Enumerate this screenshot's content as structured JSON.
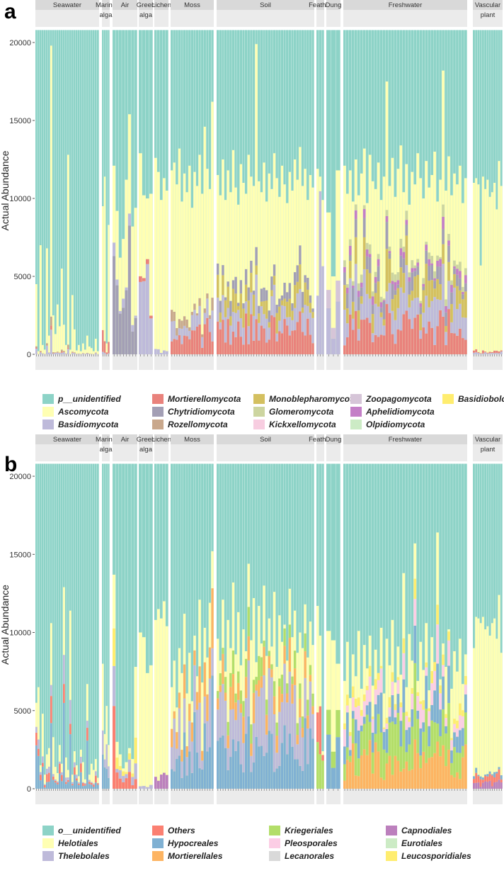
{
  "chart_data": [
    {
      "panel": "a",
      "type": "bar",
      "stacked": true,
      "ylabel": "Actual Abundance",
      "ylim": [
        0,
        21000
      ],
      "yticks": [
        0,
        5000,
        10000,
        15000,
        20000
      ],
      "background_fill": "p__unidentified",
      "background_total": 20800,
      "facets": [
        {
          "label": [
            "Seawater"
          ],
          "n": 30,
          "seed": 11,
          "main": [
            4500,
            200,
            7000,
            600,
            300,
            6800,
            1200,
            19800,
            2500,
            1300,
            3200,
            1800,
            5500,
            1900,
            600,
            12800,
            300,
            3800,
            1600,
            250,
            600,
            200,
            700,
            300,
            1200,
            500,
            400,
            200,
            1000,
            200
          ],
          "mix": [
            [
              0.05,
              "Basidiomycota"
            ],
            [
              0.01,
              "Mortierellomycota"
            ],
            [
              0.02,
              "Rozellomycota"
            ]
          ]
        },
        {
          "label": [
            "Marine",
            "alga"
          ],
          "n": 4,
          "seed": 12,
          "main": [
            9500,
            11400,
            700,
            8300
          ],
          "mix": [
            [
              0.02,
              "Basidiomycota"
            ],
            [
              0.1,
              "Mortierellomycota"
            ]
          ]
        },
        {
          "label": [
            "Air"
          ],
          "n": 8,
          "seed": 13,
          "main": [
            12100,
            9200,
            6200,
            7400,
            11200,
            15400,
            8200,
            9400
          ],
          "mix": [
            [
              0.35,
              "Chytridiomycota"
            ],
            [
              0.05,
              "Basidiomycota"
            ]
          ]
        },
        {
          "label": [
            "Green",
            "alga"
          ],
          "n": 4,
          "seed": 14,
          "main": [
            12900,
            10200,
            10000,
            10300
          ],
          "mix": [
            [
              0.5,
              "Basidiomycota"
            ],
            [
              0.02,
              "Mortierellomycota"
            ]
          ]
        },
        {
          "label": [
            "Lichen"
          ],
          "n": 5,
          "seed": 15,
          "main": [
            12600,
            11700,
            9900,
            11300,
            10500
          ],
          "mix": [
            [
              0.02,
              "Basidiomycota"
            ]
          ]
        },
        {
          "label": [
            "Moss"
          ],
          "n": 17,
          "seed": 16,
          "main": [
            11800,
            12300,
            10900,
            13200,
            9800,
            11600,
            10400,
            12100,
            9400,
            11700,
            10800,
            12800,
            10300,
            14600,
            11900,
            10600,
            16200
          ],
          "mix": [
            [
              0.12,
              "Mortierellomycota"
            ],
            [
              0.08,
              "Basidiomycota"
            ],
            [
              0.04,
              "Rozellomycota"
            ]
          ]
        },
        {
          "label": [
            "Soil"
          ],
          "n": 38,
          "seed": 17,
          "main": [
            11500,
            10200,
            12500,
            9900,
            11800,
            10400,
            13100,
            10700,
            9600,
            12200,
            11000,
            10300,
            12800,
            11400,
            10800,
            19900,
            11100,
            10400,
            12300,
            9800,
            11600,
            10600,
            12900,
            11300,
            10100,
            12100,
            10900,
            9700,
            11700,
            10500,
            12500,
            11200,
            13300,
            10800,
            11900,
            9900,
            11500,
            10700
          ],
          "mix": [
            [
              0.15,
              "Mortierellomycota"
            ],
            [
              0.1,
              "Basidiomycota"
            ],
            [
              0.08,
              "Monoblepharomycota"
            ],
            [
              0.06,
              "Chytridiomycota"
            ]
          ]
        },
        {
          "label": [
            "Feather"
          ],
          "n": 3,
          "seed": 18,
          "main": [
            11900,
            11400,
            9900
          ],
          "mix": [
            [
              0.7,
              "Basidiomycota"
            ]
          ]
        },
        {
          "label": [
            "Dung"
          ],
          "n": 3,
          "seed": 19,
          "main": [
            9100,
            5000,
            11800
          ],
          "mix": [
            [
              0.3,
              "Basidiomycota"
            ],
            [
              0.1,
              "Zoopagomycota"
            ]
          ]
        },
        {
          "label": [
            "Freshwater"
          ],
          "n": 44,
          "seed": 20,
          "main": [
            12100,
            10300,
            11800,
            9800,
            12500,
            10200,
            11600,
            13200,
            9700,
            12800,
            11100,
            10600,
            12300,
            9900,
            11400,
            17500,
            10800,
            12600,
            10100,
            11900,
            13400,
            10400,
            12200,
            9600,
            11700,
            10900,
            12900,
            11300,
            10000,
            12400,
            10700,
            11500,
            13000,
            9800,
            11200,
            18200,
            10500,
            12700,
            10200,
            11600,
            10900,
            12100,
            9700,
            11300
          ],
          "mix": [
            [
              0.15,
              "Mortierellomycota"
            ],
            [
              0.15,
              "Basidiomycota"
            ],
            [
              0.1,
              "Monoblepharomycota"
            ],
            [
              0.06,
              "Chytridiomycota"
            ],
            [
              0.03,
              "Aphelidiomycota"
            ],
            [
              0.03,
              "Glomeromycota"
            ]
          ]
        },
        {
          "label": [
            "Vascular",
            "plant"
          ],
          "n": 13,
          "seed": 21,
          "main": [
            11000,
            11300,
            10900,
            5700,
            11400,
            10600,
            11200,
            10100,
            10400,
            11000,
            9300,
            12400,
            10800
          ],
          "mix": [
            [
              0.01,
              "Basidiomycota"
            ],
            [
              0.01,
              "Mortierellomycota"
            ]
          ]
        }
      ],
      "legend": [
        {
          "name": "p__unidentified",
          "color": "#8dd3c7"
        },
        {
          "name": "Ascomycota",
          "color": "#ffffb3"
        },
        {
          "name": "Basidiomycota",
          "color": "#bebada"
        },
        {
          "name": "Mortierellomycota",
          "color": "#e9827c"
        },
        {
          "name": "Chytridiomycota",
          "color": "#a39fb5"
        },
        {
          "name": "Rozellomycota",
          "color": "#c9a88c"
        },
        {
          "name": "Monoblepharomycota",
          "color": "#d4c060"
        },
        {
          "name": "Glomeromycota",
          "color": "#cdd5a0"
        },
        {
          "name": "Kickxellomycota",
          "color": "#f7cde0"
        },
        {
          "name": "Zoopagomycota",
          "color": "#d6c5d8"
        },
        {
          "name": "Aphelidiomycota",
          "color": "#c47fc7"
        },
        {
          "name": "Olpidiomycota",
          "color": "#ccebc5"
        },
        {
          "name": "Basidiobolomycota",
          "color": "#ffed6f"
        }
      ]
    },
    {
      "panel": "b",
      "type": "bar",
      "stacked": true,
      "ylabel": "Actual Abundance",
      "ylim": [
        0,
        21000
      ],
      "yticks": [
        0,
        5000,
        10000,
        15000,
        20000
      ],
      "background_fill": "o__unidentified",
      "background_total": 20800,
      "facets": [
        {
          "label": [
            "Seawater"
          ],
          "n": 30,
          "seed": 31,
          "main": [
            5500,
            6500,
            1500,
            4800,
            900,
            2200,
            2600,
            10600,
            3300,
            1400,
            1000,
            2800,
            1600,
            12900,
            2000,
            1200,
            11400,
            900,
            2400,
            1500,
            800,
            2500,
            1700,
            600,
            6700,
            900,
            1600,
            1200,
            1900,
            700
          ],
          "mix": [
            [
              0.3,
              "Hypocreales"
            ],
            [
              0.15,
              "Others"
            ],
            [
              0.1,
              "Thelebolales"
            ]
          ]
        },
        {
          "label": [
            "Marine",
            "alga"
          ],
          "n": 4,
          "seed": 32,
          "main": [
            8000,
            3500,
            5300,
            2800
          ],
          "mix": [
            [
              0.3,
              "Hypocreales"
            ],
            [
              0.2,
              "Thelebolales"
            ]
          ]
        },
        {
          "label": [
            "Air"
          ],
          "n": 8,
          "seed": 33,
          "main": [
            13700,
            3000,
            2200,
            1300,
            1700,
            2600,
            1900,
            7800
          ],
          "mix": [
            [
              0.25,
              "Others"
            ],
            [
              0.2,
              "Thelebolales"
            ],
            [
              0.15,
              "Leucosporidiales"
            ]
          ]
        },
        {
          "label": [
            "Green",
            "alga"
          ],
          "n": 4,
          "seed": 34,
          "main": [
            10000,
            9700,
            7400,
            7900
          ],
          "mix": [
            [
              0.02,
              "Thelebolales"
            ]
          ]
        },
        {
          "label": [
            "Lichen"
          ],
          "n": 5,
          "seed": 35,
          "main": [
            10800,
            11500,
            10900,
            12000,
            10400
          ],
          "mix": [
            [
              0.05,
              "Capnodiales"
            ]
          ]
        },
        {
          "label": [
            "Moss"
          ],
          "n": 17,
          "seed": 36,
          "main": [
            6500,
            8200,
            5200,
            9000,
            7400,
            11200,
            6100,
            8700,
            5600,
            9800,
            7200,
            12100,
            6800,
            10300,
            8400,
            11900,
            15200
          ],
          "mix": [
            [
              0.3,
              "Hypocreales"
            ],
            [
              0.25,
              "Thelebolales"
            ],
            [
              0.15,
              "Mortierellales"
            ]
          ]
        },
        {
          "label": [
            "Soil"
          ],
          "n": 38,
          "seed": 37,
          "main": [
            9600,
            8200,
            12100,
            7500,
            10800,
            9000,
            13200,
            8600,
            11300,
            7900,
            10200,
            8800,
            14400,
            9500,
            12200,
            8100,
            11700,
            9300,
            13000,
            8500,
            10900,
            9100,
            12600,
            7800,
            11100,
            9400,
            10500,
            8200,
            12800,
            9700,
            11400,
            8700,
            10000,
            9000,
            11800,
            8400,
            10700,
            9200
          ],
          "mix": [
            [
              0.25,
              "Hypocreales"
            ],
            [
              0.25,
              "Thelebolales"
            ],
            [
              0.1,
              "Mortierellales"
            ],
            [
              0.08,
              "Kriegeriales"
            ]
          ]
        },
        {
          "label": [
            "Feather"
          ],
          "n": 3,
          "seed": 38,
          "main": [
            11700,
            9800,
            2400
          ],
          "mix": [
            [
              0.5,
              "Kriegeriales"
            ],
            [
              0.2,
              "Others"
            ]
          ]
        },
        {
          "label": [
            "Dung"
          ],
          "n": 3,
          "seed": 39,
          "main": [
            10100,
            9500,
            8000
          ],
          "mix": [
            [
              0.3,
              "Hypocreales"
            ],
            [
              0.2,
              "Kriegeriales"
            ]
          ]
        },
        {
          "label": [
            "Freshwater"
          ],
          "n": 44,
          "seed": 40,
          "main": [
            6900,
            9400,
            5800,
            8600,
            7200,
            10100,
            6400,
            9200,
            7700,
            9800,
            6600,
            8900,
            7400,
            10300,
            6100,
            9600,
            7900,
            10800,
            6800,
            9100,
            7300,
            13800,
            6500,
            9900,
            8200,
            15700,
            6900,
            9400,
            7600,
            10600,
            6300,
            9700,
            8100,
            16400,
            7000,
            9300,
            7800,
            10200,
            6400,
            8800,
            7500,
            9600,
            6700,
            8600
          ],
          "mix": [
            [
              0.2,
              "Mortierellales"
            ],
            [
              0.2,
              "Kriegeriales"
            ],
            [
              0.15,
              "Hypocreales"
            ],
            [
              0.1,
              "Pleosporales"
            ],
            [
              0.05,
              "Leucosporidiales"
            ]
          ]
        },
        {
          "label": [
            "Vascular",
            "plant"
          ],
          "n": 13,
          "seed": 41,
          "main": [
            9000,
            11000,
            10900,
            10600,
            11000,
            10200,
            10400,
            9800,
            10600,
            10900,
            9600,
            12400,
            8700
          ],
          "mix": [
            [
              0.04,
              "Capnodiales"
            ],
            [
              0.04,
              "Others"
            ],
            [
              0.02,
              "Hypocreales"
            ]
          ]
        }
      ],
      "legend": [
        {
          "name": "o__unidentified",
          "color": "#8dd3c7"
        },
        {
          "name": "Helotiales",
          "color": "#ffffb3"
        },
        {
          "name": "Thelebolales",
          "color": "#bebada"
        },
        {
          "name": "Others",
          "color": "#fb8072"
        },
        {
          "name": "Hypocreales",
          "color": "#80b1d3"
        },
        {
          "name": "Mortierellales",
          "color": "#fdb462"
        },
        {
          "name": "Kriegeriales",
          "color": "#b3de69"
        },
        {
          "name": "Pleosporales",
          "color": "#fccde5"
        },
        {
          "name": "Lecanorales",
          "color": "#d9d9d9"
        },
        {
          "name": "Capnodiales",
          "color": "#bc80bd"
        },
        {
          "name": "Eurotiales",
          "color": "#ccebc5"
        },
        {
          "name": "Leucosporidiales",
          "color": "#ffed6f"
        }
      ]
    }
  ]
}
